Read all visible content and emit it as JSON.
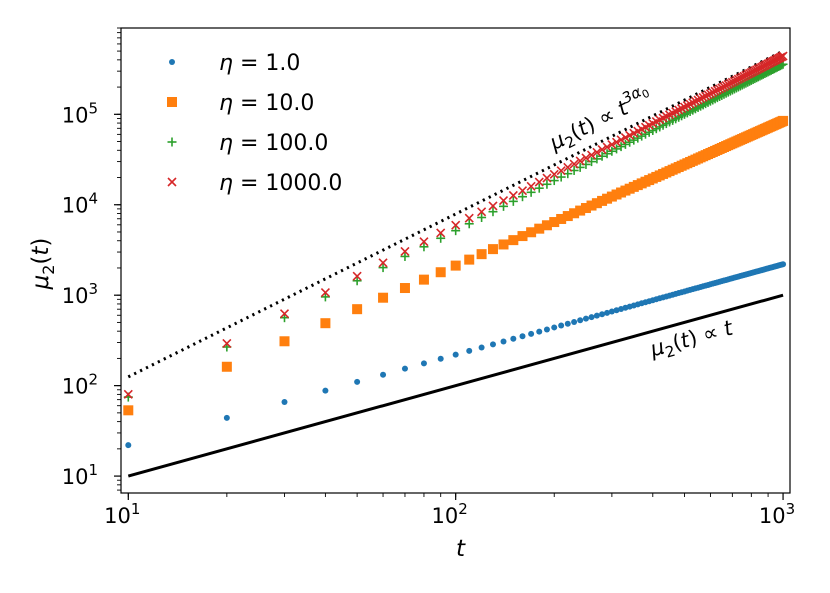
{
  "chart_data": {
    "type": "scatter",
    "xscale": "log",
    "yscale": "log",
    "xlabel": "t",
    "ylabel": "μ2(t)",
    "xlim": [
      9.5,
      1050
    ],
    "ylim": [
      6.5,
      900000
    ],
    "xticks": [
      {
        "value": 10,
        "label": "10",
        "exp": "1"
      },
      {
        "value": 100,
        "label": "10",
        "exp": "2"
      },
      {
        "value": 1000,
        "label": "10",
        "exp": "3"
      }
    ],
    "yticks": [
      {
        "value": 10,
        "label": "10",
        "exp": "1"
      },
      {
        "value": 100,
        "label": "10",
        "exp": "2"
      },
      {
        "value": 1000,
        "label": "10",
        "exp": "3"
      },
      {
        "value": 10000,
        "label": "10",
        "exp": "4"
      },
      {
        "value": 100000,
        "label": "10",
        "exp": "5"
      }
    ],
    "x": [
      10,
      20,
      30,
      40,
      50,
      60,
      70,
      80,
      90,
      100,
      110,
      120,
      130,
      140,
      150,
      160,
      170,
      180,
      190,
      200,
      210,
      220,
      230,
      240,
      250,
      260,
      270,
      280,
      290,
      300,
      310,
      320,
      330,
      340,
      350,
      360,
      370,
      380,
      390,
      400,
      410,
      420,
      430,
      440,
      450,
      460,
      470,
      480,
      490,
      500,
      510,
      520,
      530,
      540,
      550,
      560,
      570,
      580,
      590,
      600,
      610,
      620,
      630,
      640,
      650,
      660,
      670,
      680,
      690,
      700,
      710,
      720,
      730,
      740,
      750,
      760,
      770,
      780,
      790,
      800,
      810,
      820,
      830,
      840,
      850,
      860,
      870,
      880,
      890,
      900,
      910,
      920,
      930,
      940,
      950,
      960,
      970,
      980,
      990,
      1000
    ],
    "series": [
      {
        "name": "η = 1.0",
        "legend_label": "η = 1.0",
        "marker": "circle",
        "color": "#1f77b4",
        "a": 2.2,
        "b": 1.0
      },
      {
        "name": "η = 10.0",
        "legend_label": "η = 10.0",
        "marker": "square",
        "color": "#ff7f0e",
        "a": 1.34,
        "b": 1.6
      },
      {
        "name": "η = 100.0",
        "legend_label": "η = 100.0",
        "marker": "plus",
        "color": "#2ca02c",
        "a": 1.08,
        "b": 1.84
      },
      {
        "name": "η = 1000.0",
        "legend_label": "η = 1000.0",
        "marker": "x",
        "color": "#d62728",
        "a": 1.08,
        "b": 1.87
      }
    ],
    "reference_lines": [
      {
        "name": "linear",
        "style": "solid",
        "color": "#000000",
        "points": [
          [
            10,
            10
          ],
          [
            1000,
            1000
          ]
        ],
        "annotation": "μ2(t) ∝ t",
        "annotation_at": [
          400,
          210
        ]
      },
      {
        "name": "superdiffusive",
        "style": "dotted",
        "color": "#000000",
        "points": [
          [
            10,
            125
          ],
          [
            1000,
            500000
          ]
        ],
        "annotation": "μ2(t) ∝ t^(3α0)",
        "annotation_at": [
          200,
          40000
        ]
      }
    ],
    "legend_position": "top-left"
  },
  "icons": {
    "legend_marker_names": [
      "circle-marker-icon",
      "square-marker-icon",
      "plus-marker-icon",
      "x-marker-icon"
    ]
  }
}
